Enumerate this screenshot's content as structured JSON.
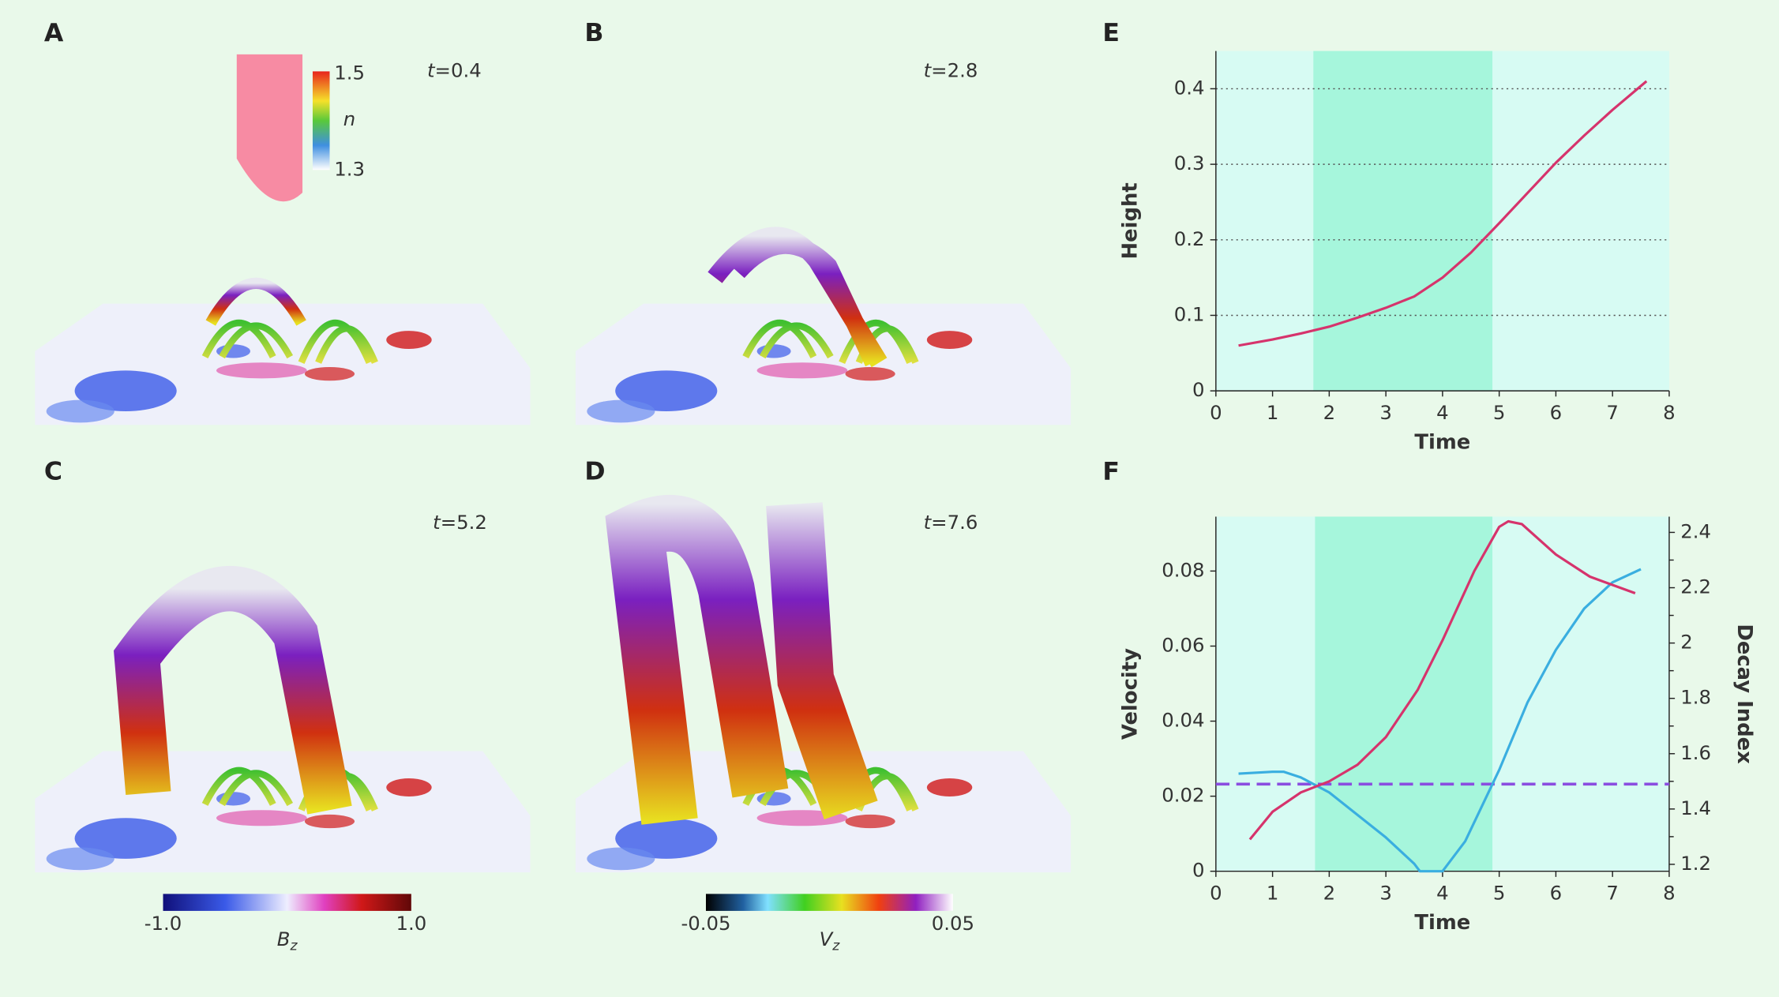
{
  "panels": [
    {
      "label": "A",
      "time_symbol": "t",
      "time_value": "=0.4",
      "colorbar": {
        "ticks": [
          1.5,
          1.3
        ],
        "label": "n"
      }
    },
    {
      "label": "B",
      "time_symbol": "t",
      "time_value": "=2.8"
    },
    {
      "label": "C",
      "time_symbol": "t",
      "time_value": "=5.2"
    },
    {
      "label": "D",
      "time_symbol": "t",
      "time_value": "=7.6"
    }
  ],
  "colorbars": [
    {
      "ticks": [
        {
          "value": -1,
          "label": "-1.0"
        },
        {
          "value": 1,
          "label": "1.0"
        }
      ],
      "symbol": "B",
      "subscript": "z"
    },
    {
      "ticks": [
        -0.05,
        0.05
      ],
      "symbol": "V",
      "subscript": "z"
    }
  ],
  "chart_data": [
    {
      "type": "line",
      "panel_label": "E",
      "xlabel": "Time",
      "ylabel": "Height",
      "xlim": [
        0,
        8
      ],
      "xticks": [
        0,
        1,
        2,
        3,
        4,
        5,
        6,
        7,
        8
      ],
      "ylim": [
        0,
        0.45
      ],
      "yticks": [
        0,
        0.1,
        0.2,
        0.3,
        0.4
      ],
      "grid": true,
      "shaded_span": [
        1.72,
        4.88
      ],
      "series": [
        {
          "color": "#d6336c",
          "x": [
            0.4,
            1,
            1.5,
            2,
            2.5,
            3,
            3.5,
            4,
            4.5,
            5,
            5.5,
            6,
            6.5,
            7,
            7.6
          ],
          "values": [
            0.06,
            0.068,
            0.076,
            0.085,
            0.097,
            0.11,
            0.125,
            0.15,
            0.183,
            0.222,
            0.262,
            0.302,
            0.338,
            0.372,
            0.41
          ]
        }
      ]
    },
    {
      "type": "line",
      "panel_label": "F",
      "xlabel": "Time",
      "ylabel": "Velocity",
      "y2label": "Decay Index",
      "xlim": [
        0,
        8
      ],
      "xticks": [
        0,
        1,
        2,
        3,
        4,
        5,
        6,
        7,
        8
      ],
      "ylim": [
        0,
        0.0945
      ],
      "yticks": [
        0,
        0.02,
        0.04,
        0.06,
        0.08
      ],
      "y2lim": [
        1.175,
        2.457
      ],
      "y2ticks": [
        1.2,
        1.4,
        1.6,
        1.8,
        2.0,
        2.2,
        2.4
      ],
      "y2minor_ticks": [
        1.3,
        1.5,
        1.7,
        1.9,
        2.1,
        2.3
      ],
      "grid": false,
      "shaded_span": [
        1.75,
        4.88
      ],
      "reference_line": {
        "value": 1.49,
        "axis": "y2",
        "color": "#8a4de0"
      },
      "series": [
        {
          "color": "#3aaee0",
          "axis": "y",
          "x": [
            0.4,
            1,
            1.2,
            1.5,
            2,
            2.5,
            3,
            3.5,
            3.6,
            4,
            4.4,
            5,
            5.5,
            6,
            6.5,
            7,
            7.5
          ],
          "values": [
            0.026,
            0.0265,
            0.0265,
            0.025,
            0.021,
            0.015,
            0.009,
            0.002,
            0,
            0,
            0.008,
            0.027,
            0.045,
            0.059,
            0.07,
            0.077,
            0.0805
          ]
        },
        {
          "color": "#d6336c",
          "axis": "y2",
          "x": [
            0.6,
            1,
            1.5,
            2,
            2.5,
            3,
            3.56,
            4,
            4.56,
            5,
            5.16,
            5.4,
            6,
            6.6,
            7.4
          ],
          "values": [
            1.29,
            1.39,
            1.46,
            1.5,
            1.56,
            1.66,
            1.83,
            2.01,
            2.26,
            2.42,
            2.44,
            2.43,
            2.32,
            2.24,
            2.18
          ]
        }
      ]
    }
  ]
}
